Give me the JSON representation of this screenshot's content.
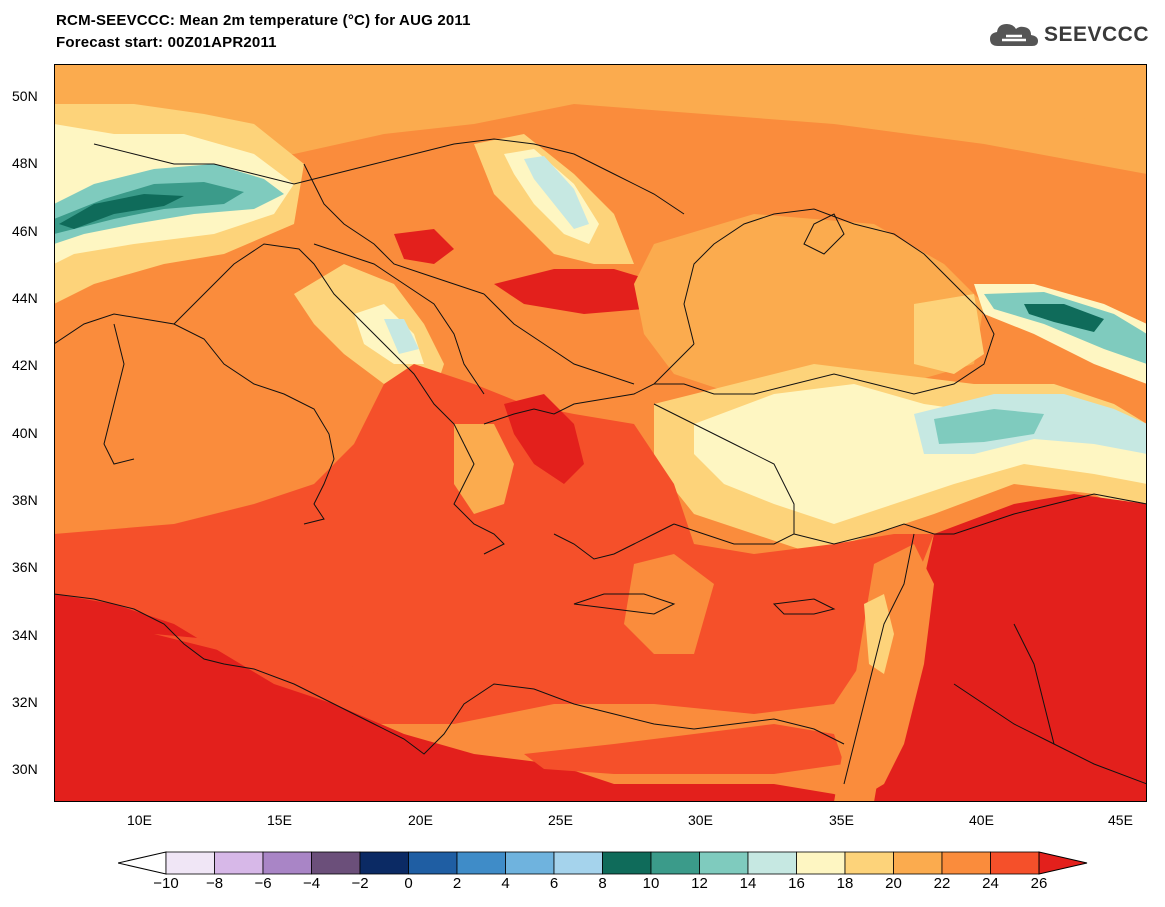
{
  "header": {
    "title_line1": "RCM-SEEVCCC: Mean 2m temperature (°C) for AUG 2011",
    "title_line2": "Forecast start: 00Z01APR2011",
    "logo_text": "SEEVCCC",
    "logo_icon": "cloud-icon"
  },
  "map": {
    "lat_labels": [
      "50N",
      "48N",
      "46N",
      "44N",
      "42N",
      "40N",
      "38N",
      "36N",
      "34N",
      "32N",
      "30N"
    ],
    "lon_labels": [
      "10E",
      "15E",
      "20E",
      "25E",
      "30E",
      "35E",
      "40E",
      "45E"
    ],
    "colors": {
      "hot_26": "#e3201c",
      "24_26": "#f5502a",
      "22_24": "#fa8c3c",
      "20_22": "#fbab4e",
      "18_20": "#fdd37a",
      "16_18": "#fef6c2",
      "14_16": "#c6e8e2",
      "12_14": "#7fcbbe",
      "10_12": "#3b9b8a",
      "8_10": "#0f6b5a"
    }
  },
  "colorbar": {
    "labels": [
      "−10",
      "−8",
      "−6",
      "−4",
      "−2",
      "0",
      "2",
      "4",
      "6",
      "8",
      "10",
      "12",
      "14",
      "16",
      "18",
      "20",
      "22",
      "24",
      "26"
    ],
    "colors": [
      "#ffffff",
      "#f0e6f6",
      "#d7b8e8",
      "#a985c6",
      "#6b4f7a",
      "#0b2a64",
      "#1f5ea3",
      "#3f8cc8",
      "#6fb3de",
      "#a5d3ec",
      "#0f6b5a",
      "#3b9b8a",
      "#7fcbbe",
      "#c6e8e2",
      "#fef6c2",
      "#fdd37a",
      "#fbab4e",
      "#fa8c3c",
      "#f5502a",
      "#e3201c"
    ]
  }
}
